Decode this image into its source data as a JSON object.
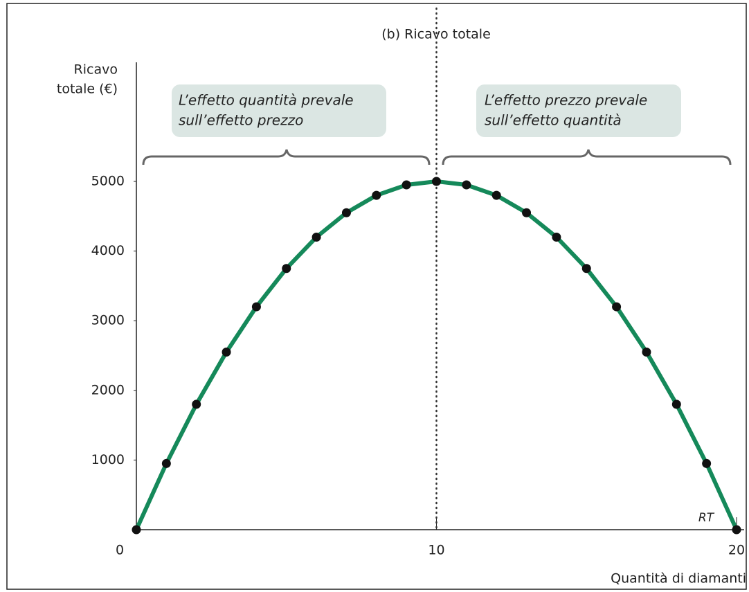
{
  "chart_data": {
    "type": "line",
    "title": "(b) Ricavo totale",
    "y_label": [
      "Ricavo",
      "totale (€)"
    ],
    "x_label": "Quantità di diamanti",
    "x": [
      0,
      1,
      2,
      3,
      4,
      5,
      6,
      7,
      8,
      9,
      10,
      11,
      12,
      13,
      14,
      15,
      16,
      17,
      18,
      19,
      20
    ],
    "series": [
      {
        "name": "RT",
        "color": "#15895a",
        "marker_color": "#111111",
        "values": [
          0,
          950,
          1800,
          2550,
          3200,
          3750,
          4200,
          4550,
          4800,
          4950,
          5000,
          4950,
          4800,
          4550,
          4200,
          3750,
          3200,
          2550,
          1800,
          950,
          0
        ]
      }
    ],
    "xlim": [
      0,
      20
    ],
    "xticks": [
      0,
      10,
      20
    ],
    "ylim": [
      0,
      5000
    ],
    "yticks": [
      1000,
      2000,
      3000,
      4000,
      5000
    ],
    "annotations": [
      {
        "lines": [
          "L’effetto quantità prevale",
          "sull’effetto prezzo"
        ]
      },
      {
        "lines": [
          "L’effetto prezzo prevale",
          "sull’effetto quantità"
        ]
      }
    ]
  }
}
